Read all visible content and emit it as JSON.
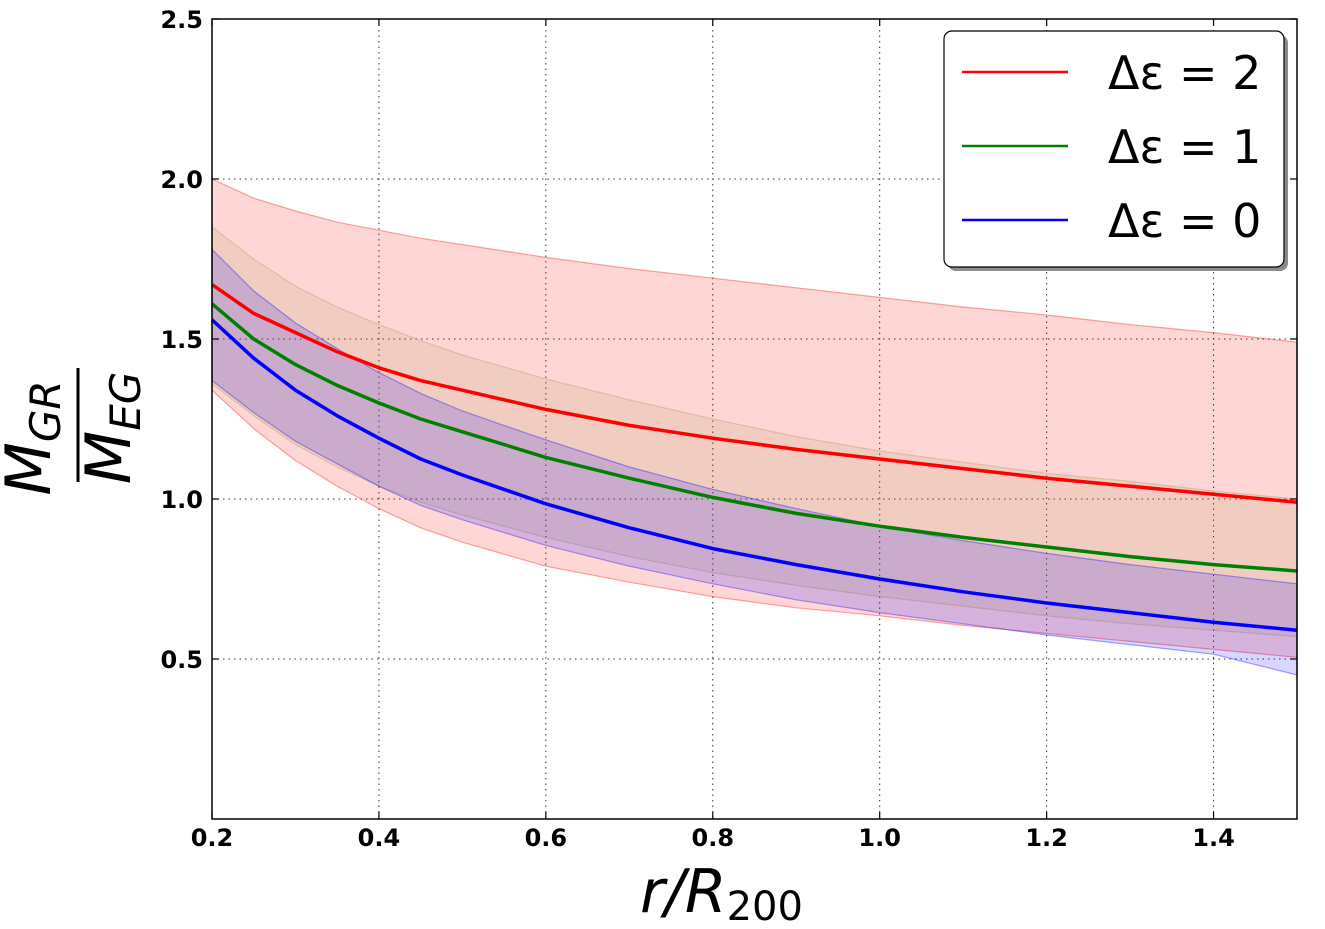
{
  "chart_data": {
    "type": "line",
    "title": "",
    "xlabel": {
      "main": "r/R",
      "sub": "200"
    },
    "ylabel": {
      "numerator": "M",
      "numerator_sub": "GR",
      "denominator": "M",
      "denominator_sub": "EG"
    },
    "xlim": [
      0.2,
      1.5
    ],
    "ylim": [
      0.0,
      2.5
    ],
    "xticks": [
      0.2,
      0.4,
      0.6,
      0.8,
      1.0,
      1.2,
      1.4
    ],
    "xtick_labels": [
      "0.2",
      "0.4",
      "0.6",
      "0.8",
      "1.0",
      "1.2",
      "1.4"
    ],
    "yticks": [
      0.5,
      1.0,
      1.5,
      2.0,
      2.5
    ],
    "ytick_labels": [
      "0.5",
      "1.0",
      "1.5",
      "2.0",
      "2.5"
    ],
    "grid": true,
    "legend_position": "top-right",
    "x": [
      0.2,
      0.25,
      0.3,
      0.35,
      0.4,
      0.45,
      0.5,
      0.6,
      0.7,
      0.8,
      0.9,
      1.0,
      1.1,
      1.2,
      1.3,
      1.4,
      1.5
    ],
    "series": [
      {
        "name": "Δε = 2",
        "label": "Δε = 2",
        "color": "#ff0000",
        "band_color": "#ff0000",
        "values": [
          1.67,
          1.58,
          1.52,
          1.46,
          1.41,
          1.37,
          1.34,
          1.28,
          1.23,
          1.19,
          1.155,
          1.125,
          1.095,
          1.065,
          1.04,
          1.015,
          0.99
        ],
        "upper": [
          2.0,
          1.94,
          1.9,
          1.865,
          1.84,
          1.815,
          1.795,
          1.755,
          1.72,
          1.69,
          1.66,
          1.63,
          1.6,
          1.575,
          1.545,
          1.52,
          1.49
        ],
        "lower": [
          1.34,
          1.22,
          1.12,
          1.04,
          0.97,
          0.91,
          0.865,
          0.79,
          0.74,
          0.695,
          0.66,
          0.635,
          0.605,
          0.58,
          0.555,
          0.53,
          0.505
        ]
      },
      {
        "name": "Δε = 1",
        "label": "Δε = 1",
        "color": "#008000",
        "band_color": "#aa9955",
        "values": [
          1.61,
          1.5,
          1.42,
          1.355,
          1.3,
          1.25,
          1.21,
          1.13,
          1.065,
          1.005,
          0.955,
          0.915,
          0.88,
          0.85,
          0.82,
          0.795,
          0.775
        ],
        "upper": [
          1.85,
          1.75,
          1.665,
          1.6,
          1.545,
          1.495,
          1.45,
          1.375,
          1.31,
          1.25,
          1.195,
          1.15,
          1.115,
          1.08,
          1.055,
          1.025,
          1.0
        ],
        "lower": [
          1.36,
          1.26,
          1.17,
          1.1,
          1.04,
          0.99,
          0.95,
          0.88,
          0.82,
          0.77,
          0.73,
          0.695,
          0.665,
          0.635,
          0.61,
          0.59,
          0.57
        ]
      },
      {
        "name": "Δε = 0",
        "label": "Δε = 0",
        "color": "#0000ff",
        "band_color": "#0000ff",
        "values": [
          1.56,
          1.44,
          1.34,
          1.26,
          1.19,
          1.125,
          1.075,
          0.985,
          0.91,
          0.845,
          0.795,
          0.75,
          0.71,
          0.675,
          0.645,
          0.615,
          0.59
        ],
        "upper": [
          1.78,
          1.65,
          1.55,
          1.47,
          1.395,
          1.33,
          1.275,
          1.185,
          1.1,
          1.03,
          0.97,
          0.915,
          0.87,
          0.83,
          0.795,
          0.765,
          0.735
        ],
        "lower": [
          1.37,
          1.27,
          1.18,
          1.11,
          1.04,
          0.98,
          0.935,
          0.855,
          0.79,
          0.735,
          0.685,
          0.645,
          0.61,
          0.575,
          0.545,
          0.515,
          0.45
        ]
      }
    ]
  }
}
